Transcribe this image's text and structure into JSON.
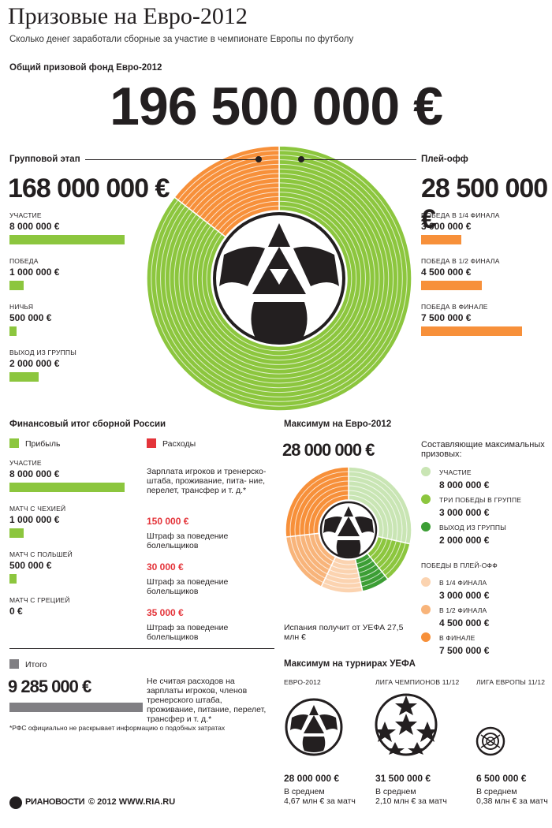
{
  "header": {
    "title": "Призовые на Евро-2012",
    "subtitle": "Сколько денег заработали сборные за участие в чемпионате Европы по футболу",
    "fund_label": "Общий призовой фонд Евро-2012",
    "fund_total": "196 500 000 €"
  },
  "group_stage": {
    "label": "Групповой этап",
    "total": "168 000 000 €",
    "items": [
      {
        "label": "участие",
        "value": "8 000 000 €",
        "amount": 8000000
      },
      {
        "label": "победа",
        "value": "1 000 000 €",
        "amount": 1000000
      },
      {
        "label": "ничья",
        "value": "500 000 €",
        "amount": 500000
      },
      {
        "label": "выход из группы",
        "value": "2 000 000 €",
        "amount": 2000000
      }
    ]
  },
  "playoff": {
    "label": "Плей-офф",
    "total": "28 500 000 €",
    "items": [
      {
        "label": "победа в 1/4 финала",
        "value": "3 000 000 €",
        "amount": 3000000
      },
      {
        "label": "победа в 1/2 финала",
        "value": "4 500 000 €",
        "amount": 4500000
      },
      {
        "label": "победа в финале",
        "value": "7 500 000 €",
        "amount": 7500000
      }
    ]
  },
  "russia": {
    "title": "Финансовый итог сборной России",
    "profit_label": "Прибыль",
    "expenses_label": "Расходы",
    "profit_items": [
      {
        "label": "участие",
        "value": "8 000 000 €",
        "amount": 8000000
      },
      {
        "label": "матч с Чехией",
        "value": "1 000 000 €",
        "amount": 1000000
      },
      {
        "label": "матч с Польшей",
        "value": "500 000 €",
        "amount": 500000
      },
      {
        "label": "матч с Грецией",
        "value": "0 €",
        "amount": 0
      }
    ],
    "expense_note": "Зарплата игроков и тренерско- штаба, проживание, пита- ние, перелет, трансфер и т. д.*",
    "expense_items": [
      {
        "value": "150 000 €",
        "desc": "Штраф за поведение болельщиков"
      },
      {
        "value": "30 000 €",
        "desc": "Штраф за поведение болельщиков"
      },
      {
        "value": "35 000 €",
        "desc": "Штраф за поведение болельщиков"
      }
    ],
    "total_label": "Итого",
    "total_value": "9 285 000 €",
    "total_amount": 9285000,
    "total_note": "Не считая расходов на зарплаты игроков, членов тренерского штаба, проживание, питание, перелет, трансфер и т. д.*",
    "footnote": "*РФС официально не раскрывает информацию о подобных затратах"
  },
  "maximum": {
    "title": "Максимум на Евро-2012",
    "value": "28 000 000 €",
    "components_title": "Составляющие максимальных призовых:",
    "group_components": [
      {
        "label": "участие",
        "value": "8 000 000 €",
        "color": "#c9e5b4"
      },
      {
        "label": "три победы в группе",
        "value": "3 000 000 €",
        "color": "#8cc63e"
      },
      {
        "label": "выход из группы",
        "value": "2 000 000 €",
        "color": "#3c9e35"
      }
    ],
    "playoff_title": "победы в плей-офф",
    "playoff_components": [
      {
        "label": "в 1/4 финала",
        "value": "3 000 000 €",
        "color": "#fbd3b0"
      },
      {
        "label": "в 1/2 финала",
        "value": "4 500 000 €",
        "color": "#f8b47a"
      },
      {
        "label": "в финале",
        "value": "7 500 000 €",
        "color": "#f7903a"
      }
    ],
    "spain_note": "Испания получит от УЕФА 27,5 млн €"
  },
  "uefa": {
    "title": "Максимум на турнирах УЕФА",
    "tournaments": [
      {
        "name": "Евро-2012",
        "value": "28 000 000 €",
        "avg_label": "В среднем",
        "avg": "4,67 млн € за матч"
      },
      {
        "name": "Лига чемпионов 11/12",
        "value": "31 500 000 €",
        "avg_label": "В среднем",
        "avg": "2,10 млн € за матч"
      },
      {
        "name": "Лига Европы 11/12",
        "value": "6 500 000 €",
        "avg_label": "В среднем",
        "avg": "0,38 млн € за матч"
      }
    ]
  },
  "footer": {
    "brand": "РИАНОВОСТИ",
    "copyright": "© 2012 WWW.RIA.RU"
  },
  "colors": {
    "green": "#8cc63e",
    "orange": "#f7903a",
    "gray": "#807f83",
    "red": "#e4343a",
    "dark": "#231f20"
  },
  "chart_data": [
    {
      "type": "pie",
      "categories": [
        "Групповой этап",
        "Плей-офф"
      ],
      "values": [
        168000000,
        28500000
      ]
    },
    {
      "type": "bar",
      "categories": [
        "участие",
        "победа",
        "ничья",
        "выход из группы"
      ],
      "values": [
        8000000,
        1000000,
        500000,
        2000000
      ]
    },
    {
      "type": "bar",
      "categories": [
        "победа в 1/4 финала",
        "победа в 1/2 финала",
        "победа в финале"
      ],
      "values": [
        3000000,
        4500000,
        7500000
      ]
    },
    {
      "type": "bar",
      "categories": [
        "участие",
        "матч с Чехией",
        "матч с Польшей",
        "матч с Грецией"
      ],
      "values": [
        8000000,
        1000000,
        500000,
        0
      ]
    },
    {
      "type": "pie",
      "categories": [
        "участие",
        "три победы в группе",
        "выход из группы",
        "в 1/4 финала",
        "в 1/2 финала",
        "в финале"
      ],
      "values": [
        8000000,
        3000000,
        2000000,
        3000000,
        4500000,
        7500000
      ]
    },
    {
      "type": "bar",
      "categories": [
        "Евро-2012",
        "Лига чемпионов 11/12",
        "Лига Европы 11/12"
      ],
      "values": [
        28000000,
        31500000,
        6500000
      ]
    }
  ]
}
